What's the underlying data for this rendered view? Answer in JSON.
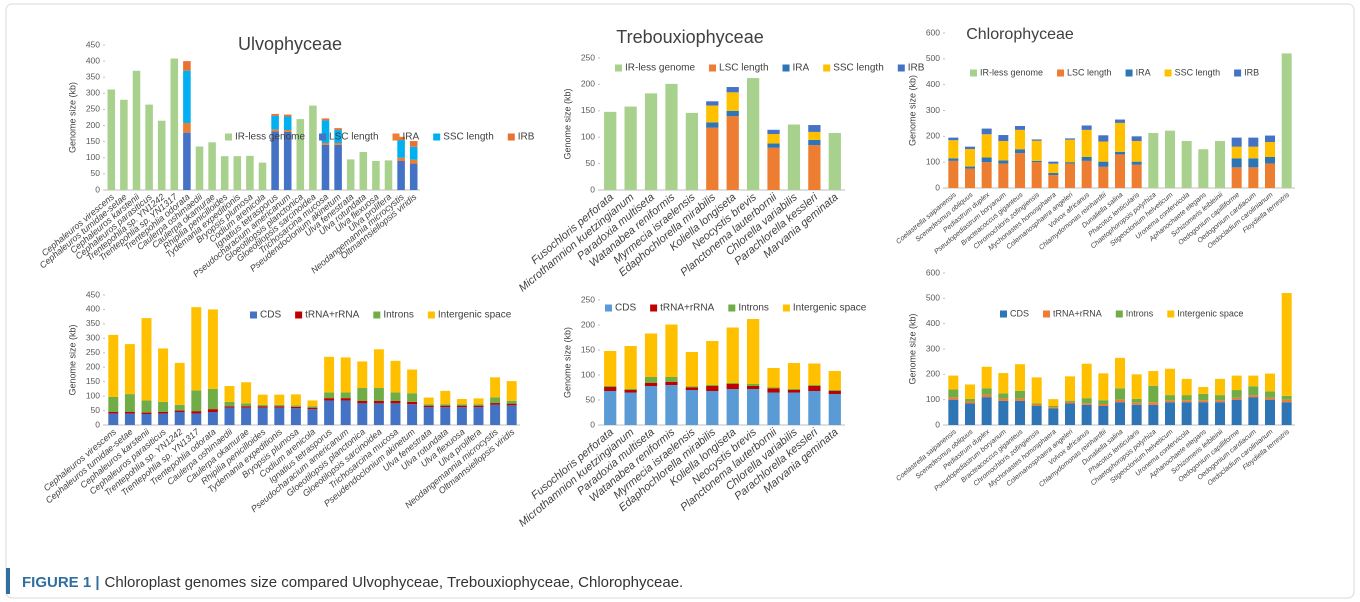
{
  "chart_data": [
    {
      "type": "bar",
      "stacked": true,
      "title": "Ulvophyceae",
      "ylabel": "Genome size (kb)",
      "categories": [
        "Cephaleuros virescens",
        "Cephaleuros tumidae-setae",
        "Cephaleuros karstenii",
        "Cephaleuros parasiticus",
        "Trentepohlia sp. YN1242",
        "Trentepohlia sp. YN1317",
        "Trentepohlia odorata",
        "Caulerpa oshimaedii",
        "Caulerpa okamurae",
        "Rhipilia penicilloides",
        "Tydemania expeditionis",
        "Bryopsis plumosa",
        "Codium arenicola",
        "Ignatius tetrasporus",
        "Pseudocharacium americanum",
        "Gloeotilopsis planctonica",
        "Gloeotilopsis sarcinoidea",
        "Trichosarcina mucosa",
        "Pseudendoclonium akinetum",
        "Ulva fenestrata",
        "Ulva rotundata",
        "Ulva flexuosa",
        "Ulva prolifera",
        "Neodangemannia microcystis",
        "Oltmannsiellopsis viridis"
      ],
      "series": [
        {
          "name": "IR-less genome",
          "color": "#a9d18e",
          "values": [
            312,
            280,
            370,
            265,
            215,
            408,
            null,
            135,
            148,
            105,
            105,
            106,
            85,
            null,
            null,
            220,
            262,
            null,
            null,
            95,
            118,
            90,
            92,
            null,
            null
          ]
        },
        {
          "name": "LSC length",
          "color": "#4472c4",
          "values": [
            null,
            null,
            null,
            null,
            null,
            null,
            178,
            null,
            null,
            null,
            null,
            null,
            null,
            182,
            180,
            null,
            null,
            140,
            140,
            null,
            null,
            null,
            null,
            90,
            82
          ]
        },
        {
          "name": "IRA",
          "color": "#ed7d31",
          "values": [
            null,
            null,
            null,
            null,
            null,
            null,
            30,
            null,
            null,
            null,
            null,
            null,
            null,
            6,
            6,
            null,
            null,
            6,
            6,
            null,
            null,
            null,
            null,
            10,
            12
          ]
        },
        {
          "name": "SSC length",
          "color": "#00b0f0",
          "values": [
            null,
            null,
            null,
            null,
            null,
            null,
            162,
            null,
            null,
            null,
            null,
            null,
            null,
            42,
            42,
            null,
            null,
            70,
            40,
            null,
            null,
            null,
            null,
            55,
            40
          ]
        },
        {
          "name": "IRB",
          "color": "#e97132",
          "values": [
            null,
            null,
            null,
            null,
            null,
            null,
            30,
            null,
            null,
            null,
            null,
            null,
            null,
            6,
            6,
            null,
            null,
            6,
            6,
            null,
            null,
            null,
            null,
            10,
            18
          ]
        }
      ],
      "ylim": [
        0,
        450
      ],
      "yticks": [
        0,
        50,
        100,
        150,
        200,
        250,
        300,
        350,
        400,
        450
      ],
      "legend": "inside",
      "grid": false
    },
    {
      "type": "bar",
      "stacked": true,
      "title": "Trebouxiophyceae",
      "ylabel": "Genome size (kb)",
      "categories": [
        "Fusochloris perforata",
        "Microthamnion kuetzingianum",
        "Paradoxia multiseta",
        "Watanabea reniformis",
        "Myrmecia israelensis",
        "Edaphochlorella mirabilis",
        "Koliella longiseta",
        "Neocystis brevis",
        "Planctonema lauterbornii",
        "Chlorella variabilis",
        "Parachlorella kessleri",
        "Marvania geminata"
      ],
      "series": [
        {
          "name": "IR-less genome",
          "color": "#a9d18e",
          "values": [
            148,
            158,
            183,
            201,
            146,
            null,
            null,
            212,
            null,
            124,
            null,
            108
          ]
        },
        {
          "name": "LSC length",
          "color": "#ed7d31",
          "values": [
            null,
            null,
            null,
            null,
            null,
            118,
            140,
            null,
            80,
            null,
            85,
            null
          ]
        },
        {
          "name": "IRA",
          "color": "#2e75b6",
          "values": [
            null,
            null,
            null,
            null,
            null,
            10,
            10,
            null,
            8,
            null,
            10,
            null
          ]
        },
        {
          "name": "SSC length",
          "color": "#ffc000",
          "values": [
            null,
            null,
            null,
            null,
            null,
            32,
            35,
            null,
            18,
            null,
            15,
            null
          ]
        },
        {
          "name": "IRB",
          "color": "#4472c4",
          "values": [
            null,
            null,
            null,
            null,
            null,
            8,
            10,
            null,
            8,
            null,
            13,
            null
          ]
        }
      ],
      "ylim": [
        0,
        250
      ],
      "yticks": [
        0,
        50,
        100,
        150,
        200,
        250
      ],
      "legend": "top",
      "grid": false
    },
    {
      "type": "bar",
      "stacked": true,
      "title": "Chlorophyceae",
      "ylabel": "Genome size (kb)",
      "categories": [
        "Coelastrella saipanensis",
        "Scenedesmus obliquus",
        "Pediastrum duplex",
        "Pseudopediastrum boryanum",
        "Bracteacoccus giganteus",
        "Chromochloris zofingiensis",
        "Mychonastes homosphaera",
        "Colemanosphaera angeleri",
        "Volvox africanus",
        "Chlamydomonas reinhardtii",
        "Dunaliella salina",
        "Phacotus lenticularis",
        "Chaetophoropsis polyrhiza",
        "Stigeoclonium helveticum",
        "Uronema confervicola",
        "Aphanochaete elegans",
        "Schizomeris leibleinii",
        "Oedogonium capilliforme",
        "Oedogonium cardiacum",
        "Oedocladium carolinianum",
        "Floydiella terrestris"
      ],
      "series": [
        {
          "name": "IR-less genome",
          "color": "#a9d18e",
          "values": [
            null,
            null,
            null,
            null,
            null,
            null,
            null,
            null,
            null,
            null,
            null,
            null,
            213,
            222,
            182,
            150,
            182,
            null,
            null,
            null,
            521
          ]
        },
        {
          "name": "LSC length",
          "color": "#ed7d31",
          "values": [
            105,
            75,
            100,
            95,
            135,
            100,
            50,
            95,
            105,
            82,
            130,
            90,
            null,
            null,
            null,
            null,
            null,
            80,
            80,
            95,
            null
          ]
        },
        {
          "name": "IRA",
          "color": "#2e75b6",
          "values": [
            10,
            8,
            18,
            12,
            15,
            5,
            8,
            5,
            15,
            20,
            10,
            12,
            null,
            null,
            null,
            null,
            null,
            35,
            35,
            25,
            null
          ]
        },
        {
          "name": "SSC length",
          "color": "#ffc000",
          "values": [
            70,
            68,
            90,
            75,
            75,
            78,
            36,
            87,
            105,
            78,
            112,
            80,
            null,
            null,
            null,
            null,
            null,
            45,
            45,
            58,
            null
          ]
        },
        {
          "name": "IRB",
          "color": "#4472c4",
          "values": [
            10,
            9,
            22,
            23,
            15,
            5,
            8,
            5,
            17,
            24,
            13,
            18,
            null,
            null,
            null,
            null,
            null,
            35,
            35,
            25,
            null
          ]
        }
      ],
      "ylim": [
        0,
        600
      ],
      "yticks": [
        0,
        100,
        200,
        300,
        400,
        500,
        600
      ],
      "legend": "top",
      "grid": false
    },
    {
      "type": "bar",
      "stacked": true,
      "ylabel": "Genome size (kb)",
      "categories": [
        "Cephaleuros virescens",
        "Cephaleuros tumidae-setae",
        "Cephaleuros karstenii",
        "Cephaleuros parasiticus",
        "Trentepohlia sp. YN1242",
        "Trentepohlia sp. YN1317",
        "Trentepohlia odorata",
        "Caulerpa oshimaedii",
        "Caulerpa okamurae",
        "Rhipilia penicilloides",
        "Tydemania expeditionis",
        "Bryopsis plumosa",
        "Codium arenicola",
        "Ignatius tetrasporus",
        "Pseudocharacium americanum",
        "Gloeotilopsis planctonica",
        "Gloeotilopsis sarcinoidea",
        "Trichosarcina mucosa",
        "Pseudendoclonium akinetum",
        "Ulva fenestrata",
        "Ulva rotundata",
        "Ulva flexuosa",
        "Ulva prolifera",
        "Neodangemannia microcystis",
        "Oltmannsiellopsis viridis"
      ],
      "series": [
        {
          "name": "CDS",
          "color": "#4472c4",
          "values": [
            40,
            40,
            38,
            40,
            45,
            40,
            45,
            60,
            60,
            60,
            60,
            58,
            55,
            85,
            85,
            75,
            75,
            75,
            72,
            62,
            62,
            62,
            62,
            70,
            68
          ]
        },
        {
          "name": "tRNA+rRNA",
          "color": "#c00000",
          "values": [
            5,
            5,
            5,
            5,
            5,
            8,
            10,
            5,
            5,
            5,
            5,
            5,
            5,
            8,
            8,
            8,
            8,
            8,
            8,
            5,
            5,
            5,
            5,
            6,
            6
          ]
        },
        {
          "name": "Introns",
          "color": "#70ad47",
          "values": [
            52,
            62,
            42,
            35,
            20,
            72,
            70,
            15,
            10,
            5,
            5,
            5,
            5,
            20,
            20,
            45,
            45,
            30,
            30,
            5,
            5,
            5,
            5,
            20,
            10
          ]
        },
        {
          "name": "Intergenic space",
          "color": "#ffc000",
          "values": [
            215,
            173,
            285,
            185,
            145,
            288,
            275,
            55,
            73,
            35,
            35,
            38,
            20,
            123,
            121,
            92,
            134,
            109,
            82,
            23,
            46,
            18,
            20,
            69,
            68
          ]
        }
      ],
      "ylim": [
        0,
        450
      ],
      "yticks": [
        0,
        50,
        100,
        150,
        200,
        250,
        300,
        350,
        400,
        450
      ],
      "legend": "top",
      "grid": false
    },
    {
      "type": "bar",
      "stacked": true,
      "ylabel": "Genome size (kb)",
      "categories": [
        "Fusochloris perforata",
        "Microthamnion kuetzingianum",
        "Paradoxia multiseta",
        "Watanabea reniformis",
        "Myrmecia israelensis",
        "Edaphochlorella mirabilis",
        "Koliella longiseta",
        "Neocystis brevis",
        "Planctonema lauterbornii",
        "Chlorella variabilis",
        "Parachlorella kessleri",
        "Marvania geminata"
      ],
      "series": [
        {
          "name": "CDS",
          "color": "#5b9bd5",
          "values": [
            68,
            65,
            78,
            80,
            70,
            68,
            72,
            72,
            65,
            65,
            68,
            62
          ]
        },
        {
          "name": "tRNA+rRNA",
          "color": "#c00000",
          "values": [
            8,
            5,
            6,
            6,
            5,
            10,
            10,
            6,
            8,
            5,
            10,
            6
          ]
        },
        {
          "name": "Introns",
          "color": "#70ad47",
          "values": [
            2,
            2,
            12,
            10,
            2,
            2,
            2,
            4,
            2,
            2,
            2,
            2
          ]
        },
        {
          "name": "Intergenic space",
          "color": "#ffc000",
          "values": [
            70,
            86,
            87,
            105,
            69,
            88,
            111,
            130,
            39,
            52,
            43,
            38
          ]
        }
      ],
      "ylim": [
        0,
        250
      ],
      "yticks": [
        0,
        50,
        100,
        150,
        200,
        250
      ],
      "legend": "top",
      "grid": false
    },
    {
      "type": "bar",
      "stacked": true,
      "ylabel": "Genome size (kb)",
      "categories": [
        "Coelastrella saipanensis",
        "Scenedesmus obliquus",
        "Pediastrum duplex",
        "Pseudopediastrum boryanum",
        "Bracteacoccus giganteus",
        "Chromochloris zofingiensis",
        "Mychonastes homosphaera",
        "Colemanosphaera angeleri",
        "Volvox africanus",
        "Chlamydomonas reinhardtii",
        "Dunaliella salina",
        "Phacotus lenticularis",
        "Chaetophoropsis polyrhiza",
        "Stigeoclonium helveticum",
        "Uronema confervicola",
        "Aphanochaete elegans",
        "Schizomeris leibleinii",
        "Oedogonium capilliforme",
        "Oedogonium cardiacum",
        "Oedocladium carolinianum",
        "Floydiella terrestris"
      ],
      "series": [
        {
          "name": "CDS",
          "color": "#2e75b6",
          "values": [
            100,
            85,
            110,
            95,
            95,
            75,
            65,
            85,
            80,
            75,
            90,
            80,
            80,
            90,
            90,
            90,
            90,
            100,
            110,
            100,
            90
          ]
        },
        {
          "name": "tRNA+rRNA",
          "color": "#ed7d31",
          "values": [
            10,
            8,
            10,
            10,
            10,
            6,
            5,
            6,
            6,
            8,
            10,
            8,
            10,
            8,
            8,
            8,
            8,
            8,
            8,
            8,
            10
          ]
        },
        {
          "name": "Introns",
          "color": "#70ad47",
          "values": [
            30,
            10,
            25,
            20,
            30,
            5,
            5,
            5,
            20,
            15,
            45,
            15,
            65,
            20,
            20,
            25,
            20,
            30,
            35,
            25,
            15
          ]
        },
        {
          "name": "Intergenic space",
          "color": "#ffc000",
          "values": [
            55,
            57,
            85,
            80,
            105,
            102,
            27,
            96,
            136,
            106,
            120,
            97,
            58,
            104,
            64,
            27,
            64,
            57,
            42,
            70,
            406
          ]
        }
      ],
      "ylim": [
        0,
        600
      ],
      "yticks": [
        0,
        100,
        200,
        300,
        400,
        500,
        600
      ],
      "legend": "top",
      "grid": false
    }
  ],
  "caption": {
    "label": "FIGURE 1 |",
    "text": "Chloroplast genomes size compared Ulvophyceae, Trebouxiophyceae, Chlorophyceae."
  }
}
